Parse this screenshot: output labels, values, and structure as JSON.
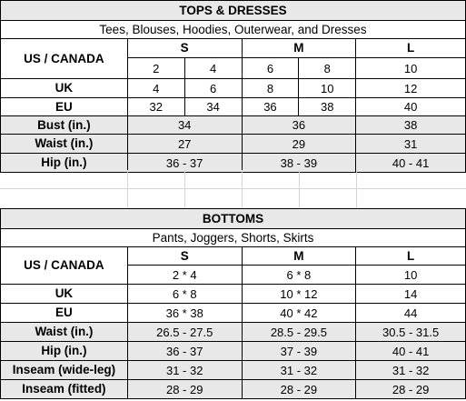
{
  "tops": {
    "title": "TOPS & DRESSES",
    "subtitle": "Tees, Blouses, Hoodies, Outerwear, and Dresses",
    "region_label": "US / CANADA",
    "sizes": [
      "S",
      "M",
      "L"
    ],
    "us_values": [
      "2",
      "4",
      "6",
      "8",
      "10"
    ],
    "uk": {
      "label": "UK",
      "values": [
        "4",
        "6",
        "8",
        "10",
        "12"
      ]
    },
    "eu": {
      "label": "EU",
      "values": [
        "32",
        "34",
        "36",
        "38",
        "40"
      ]
    },
    "bust": {
      "label": "Bust (in.)",
      "values": [
        "34",
        "36",
        "38"
      ]
    },
    "waist": {
      "label": "Waist (in.)",
      "values": [
        "27",
        "29",
        "31"
      ]
    },
    "hip": {
      "label": "Hip (in.)",
      "values": [
        "36 - 37",
        "38 - 39",
        "40 - 41"
      ]
    }
  },
  "bottoms": {
    "title": "BOTTOMS",
    "subtitle": "Pants, Joggers, Shorts, Skirts",
    "region_label": "US / CANADA",
    "sizes": [
      "S",
      "M",
      "L"
    ],
    "us_values": [
      "2 * 4",
      "6 * 8",
      "10"
    ],
    "uk": {
      "label": "UK",
      "values": [
        "6 * 8",
        "10 * 12",
        "14"
      ]
    },
    "eu": {
      "label": "EU",
      "values": [
        "36 * 38",
        "40 * 42",
        "44"
      ]
    },
    "waist": {
      "label": "Waist (in.)",
      "values": [
        "26.5 - 27.5",
        "28.5 - 29.5",
        "30.5 - 31.5"
      ]
    },
    "hip": {
      "label": "Hip (in.)",
      "values": [
        "36 - 37",
        "37 - 39",
        "40 - 41"
      ]
    },
    "inseam_wide": {
      "label": "Inseam (wide-leg)",
      "values": [
        "31 - 32",
        "31 - 32",
        "31 - 32"
      ]
    },
    "inseam_fitted": {
      "label": "Inseam (fitted)",
      "values": [
        "28 - 29",
        "28 - 29",
        "28 - 29"
      ]
    }
  }
}
